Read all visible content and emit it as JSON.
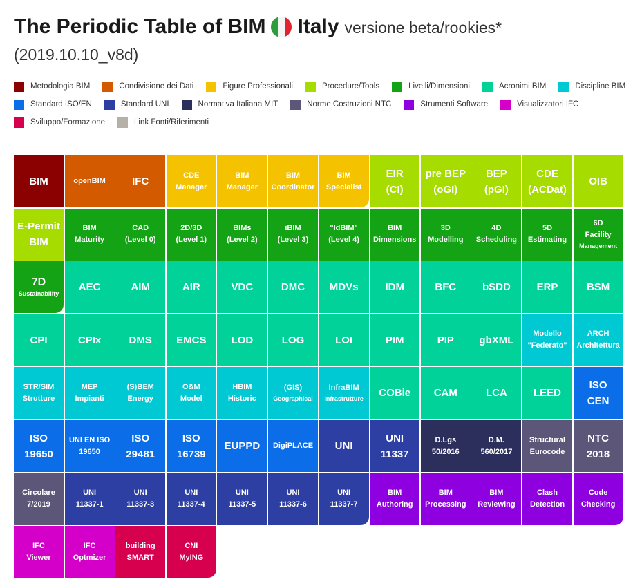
{
  "header": {
    "title": "The Periodic Table of BIM",
    "country": "Italy",
    "subtitle": "versione beta/rookies*",
    "version": "(2019.10.10_v8d)",
    "flag_colors": [
      "#2e9b3c",
      "#f4f4f4",
      "#e0242f"
    ]
  },
  "colors": {
    "metodologia": "#8b0000",
    "condivisione": "#d45a00",
    "figure": "#f5c200",
    "procedure": "#a6dc00",
    "livelli": "#14a314",
    "acronimi": "#00d29a",
    "discipline": "#00c9d4",
    "standard_iso": "#0b6ee8",
    "standard_uni": "#2e3fa3",
    "normativa": "#2c2e5c",
    "ntc": "#5c5778",
    "software": "#8e00e0",
    "ifc": "#d400c9",
    "sviluppo": "#d6004f",
    "link": "#b5b0a8"
  },
  "legend": [
    {
      "label": "Metodologia BIM",
      "key": "metodologia"
    },
    {
      "label": "Condivisione dei Dati",
      "key": "condivisione"
    },
    {
      "label": "Figure Professionali",
      "key": "figure"
    },
    {
      "label": "Procedure/Tools",
      "key": "procedure"
    },
    {
      "label": "Livelli/Dimensioni",
      "key": "livelli"
    },
    {
      "label": "Acronimi BIM",
      "key": "acronimi"
    },
    {
      "label": "Discipline BIM",
      "key": "discipline"
    },
    {
      "label": "Standard ISO/EN",
      "key": "standard_iso"
    },
    {
      "label": "Standard UNI",
      "key": "standard_uni"
    },
    {
      "label": "Normativa Italiana MIT",
      "key": "normativa"
    },
    {
      "label": "Norme Costruzioni NTC",
      "key": "ntc"
    },
    {
      "label": "Strumenti Software",
      "key": "software"
    },
    {
      "label": "Visualizzatori IFC",
      "key": "ifc"
    },
    {
      "label": "Sviluppo/Formazione",
      "key": "sviluppo"
    },
    {
      "label": "Link Fonti/Riferimenti",
      "key": "link"
    }
  ],
  "elements": [
    {
      "l1": "BIM",
      "l2": "",
      "c": "metodologia",
      "s": "big"
    },
    {
      "l1": "openBIM",
      "l2": "",
      "c": "condivisione",
      "s": "sm"
    },
    {
      "l1": "IFC",
      "l2": "",
      "c": "condivisione",
      "s": "big"
    },
    {
      "l1": "CDE",
      "l2": "Manager",
      "c": "figure",
      "s": "sm"
    },
    {
      "l1": "BIM",
      "l2": "Manager",
      "c": "figure",
      "s": "sm"
    },
    {
      "l1": "BIM",
      "l2": "Coordinator",
      "c": "figure",
      "s": "sm"
    },
    {
      "l1": "BIM",
      "l2": "Specialist",
      "c": "figure",
      "s": "sm",
      "r": 1
    },
    {
      "l1": "EIR",
      "l2": "(CI)",
      "c": "procedure",
      "s": "big"
    },
    {
      "l1": "pre BEP",
      "l2": "(oGI)",
      "c": "procedure",
      "s": "big"
    },
    {
      "l1": "BEP",
      "l2": "(pGI)",
      "c": "procedure",
      "s": "big"
    },
    {
      "l1": "CDE",
      "l2": "(ACDat)",
      "c": "procedure",
      "s": "big"
    },
    {
      "l1": "OIB",
      "l2": "",
      "c": "procedure",
      "s": "big"
    },
    {
      "l1": "E-Permit",
      "l2": "BIM",
      "c": "procedure",
      "s": "big"
    },
    {
      "l1": "BIM",
      "l2": "Maturity",
      "c": "livelli",
      "s": "sm"
    },
    {
      "l1": "CAD",
      "l2": "(Level 0)",
      "c": "livelli",
      "s": "sm"
    },
    {
      "l1": "2D/3D",
      "l2": "(Level 1)",
      "c": "livelli",
      "s": "sm"
    },
    {
      "l1": "BIMs",
      "l2": "(Level 2)",
      "c": "livelli",
      "s": "sm"
    },
    {
      "l1": "iBIM",
      "l2": "(Level 3)",
      "c": "livelli",
      "s": "sm"
    },
    {
      "l1": "\"IdBIM\"",
      "l2": "(Level 4)",
      "c": "livelli",
      "s": "sm"
    },
    {
      "l1": "BIM",
      "l2": "Dimensions",
      "c": "livelli",
      "s": "sm"
    },
    {
      "l1": "3D",
      "l2": "Modelling",
      "c": "livelli",
      "s": "sm"
    },
    {
      "l1": "4D",
      "l2": "Scheduling",
      "c": "livelli",
      "s": "sm"
    },
    {
      "l1": "5D",
      "l2": "Estimating",
      "c": "livelli",
      "s": "sm"
    },
    {
      "l1": "6D",
      "l2": "Facility",
      "l3": "Management",
      "c": "livelli",
      "s": "sm"
    },
    {
      "l1": "7D",
      "l2": "Sustainability",
      "c": "livelli",
      "s": "xs",
      "r": 1
    },
    {
      "l1": "AEC",
      "l2": "",
      "c": "acronimi",
      "s": "big"
    },
    {
      "l1": "AIM",
      "l2": "",
      "c": "acronimi",
      "s": "big"
    },
    {
      "l1": "AIR",
      "l2": "",
      "c": "acronimi",
      "s": "big"
    },
    {
      "l1": "VDC",
      "l2": "",
      "c": "acronimi",
      "s": "big"
    },
    {
      "l1": "DMC",
      "l2": "",
      "c": "acronimi",
      "s": "big"
    },
    {
      "l1": "MDVs",
      "l2": "",
      "c": "acronimi",
      "s": "big"
    },
    {
      "l1": "IDM",
      "l2": "",
      "c": "acronimi",
      "s": "big"
    },
    {
      "l1": "BFC",
      "l2": "",
      "c": "acronimi",
      "s": "big"
    },
    {
      "l1": "bSDD",
      "l2": "",
      "c": "acronimi",
      "s": "big"
    },
    {
      "l1": "ERP",
      "l2": "",
      "c": "acronimi",
      "s": "big"
    },
    {
      "l1": "BSM",
      "l2": "",
      "c": "acronimi",
      "s": "big"
    },
    {
      "l1": "CPI",
      "l2": "",
      "c": "acronimi",
      "s": "big"
    },
    {
      "l1": "CPIx",
      "l2": "",
      "c": "acronimi",
      "s": "big"
    },
    {
      "l1": "DMS",
      "l2": "",
      "c": "acronimi",
      "s": "big"
    },
    {
      "l1": "EMCS",
      "l2": "",
      "c": "acronimi",
      "s": "big"
    },
    {
      "l1": "LOD",
      "l2": "",
      "c": "acronimi",
      "s": "big"
    },
    {
      "l1": "LOG",
      "l2": "",
      "c": "acronimi",
      "s": "big"
    },
    {
      "l1": "LOI",
      "l2": "",
      "c": "acronimi",
      "s": "big"
    },
    {
      "l1": "PIM",
      "l2": "",
      "c": "acronimi",
      "s": "big"
    },
    {
      "l1": "PIP",
      "l2": "",
      "c": "acronimi",
      "s": "big"
    },
    {
      "l1": "gbXML",
      "l2": "",
      "c": "acronimi",
      "s": "big"
    },
    {
      "l1": "Modello",
      "l2": "\"Federato\"",
      "c": "discipline",
      "s": "sm"
    },
    {
      "l1": "ARCH",
      "l2": "Architettura",
      "c": "discipline",
      "s": "sm"
    },
    {
      "l1": "STR/SIM",
      "l2": "Strutture",
      "c": "discipline",
      "s": "sm"
    },
    {
      "l1": "MEP",
      "l2": "Impianti",
      "c": "discipline",
      "s": "sm"
    },
    {
      "l1": "(S)BEM",
      "l2": "Energy",
      "c": "discipline",
      "s": "sm"
    },
    {
      "l1": "O&M",
      "l2": "Model",
      "c": "discipline",
      "s": "sm"
    },
    {
      "l1": "HBIM",
      "l2": "Historic",
      "c": "discipline",
      "s": "sm"
    },
    {
      "l1": "(GIS)",
      "l2": "Geographical",
      "c": "discipline",
      "s": "sm",
      "l2s": "xs"
    },
    {
      "l1": "InfraBIM",
      "l2": "Infrastrutture",
      "c": "discipline",
      "s": "sm",
      "l2s": "xs"
    },
    {
      "l1": "COBie",
      "l2": "",
      "c": "acronimi",
      "s": "big"
    },
    {
      "l1": "CAM",
      "l2": "",
      "c": "acronimi",
      "s": "big"
    },
    {
      "l1": "LCA",
      "l2": "",
      "c": "acronimi",
      "s": "big"
    },
    {
      "l1": "LEED",
      "l2": "",
      "c": "acronimi",
      "s": "big"
    },
    {
      "l1": "ISO",
      "l2": "CEN",
      "c": "standard_iso",
      "s": "big"
    },
    {
      "l1": "ISO",
      "l2": "19650",
      "c": "standard_iso",
      "s": "big"
    },
    {
      "l1": "UNI EN ISO",
      "l2": "19650",
      "c": "standard_iso",
      "s": "sm"
    },
    {
      "l1": "ISO",
      "l2": "29481",
      "c": "standard_iso",
      "s": "big"
    },
    {
      "l1": "ISO",
      "l2": "16739",
      "c": "standard_iso",
      "s": "big"
    },
    {
      "l1": "EUPPD",
      "l2": "",
      "c": "standard_iso",
      "s": "big"
    },
    {
      "l1": "DigiPLACE",
      "l2": "",
      "c": "standard_iso",
      "s": "sm"
    },
    {
      "l1": "UNI",
      "l2": "",
      "c": "standard_uni",
      "s": "big"
    },
    {
      "l1": "UNI",
      "l2": "11337",
      "c": "standard_uni",
      "s": "big"
    },
    {
      "l1": "D.Lgs",
      "l2": "50/2016",
      "c": "normativa",
      "s": "sm"
    },
    {
      "l1": "D.M.",
      "l2": "560/2017",
      "c": "normativa",
      "s": "sm"
    },
    {
      "l1": "Structural",
      "l2": "Eurocode",
      "c": "ntc",
      "s": "sm"
    },
    {
      "l1": "NTC",
      "l2": "2018",
      "c": "ntc",
      "s": "big"
    },
    {
      "l1": "Circolare",
      "l2": "7/2019",
      "c": "ntc",
      "s": "sm"
    },
    {
      "l1": "UNI",
      "l2": "11337-1",
      "c": "standard_uni",
      "s": "sm"
    },
    {
      "l1": "UNI",
      "l2": "11337-3",
      "c": "standard_uni",
      "s": "sm"
    },
    {
      "l1": "UNI",
      "l2": "11337-4",
      "c": "standard_uni",
      "s": "sm"
    },
    {
      "l1": "UNI",
      "l2": "11337-5",
      "c": "standard_uni",
      "s": "sm"
    },
    {
      "l1": "UNI",
      "l2": "11337-6",
      "c": "standard_uni",
      "s": "sm"
    },
    {
      "l1": "UNI",
      "l2": "11337-7",
      "c": "standard_uni",
      "s": "sm",
      "r": 1
    },
    {
      "l1": "BIM",
      "l2": "Authoring",
      "c": "software",
      "s": "sm"
    },
    {
      "l1": "BIM",
      "l2": "Processing",
      "c": "software",
      "s": "sm"
    },
    {
      "l1": "BIM",
      "l2": "Reviewing",
      "c": "software",
      "s": "sm"
    },
    {
      "l1": "Clash",
      "l2": "Detection",
      "c": "software",
      "s": "sm"
    },
    {
      "l1": "Code",
      "l2": "Checking",
      "c": "software",
      "s": "sm",
      "r": 1
    },
    {
      "l1": "IFC",
      "l2": "Viewer",
      "c": "ifc",
      "s": "sm"
    },
    {
      "l1": "IFC",
      "l2": "Optmizer",
      "c": "ifc",
      "s": "sm"
    },
    {
      "l1": "building",
      "l2": "SMART",
      "c": "sviluppo",
      "s": "sm"
    },
    {
      "l1": "CNI",
      "l2": "MyING",
      "c": "sviluppo",
      "s": "sm",
      "r": 1
    }
  ]
}
